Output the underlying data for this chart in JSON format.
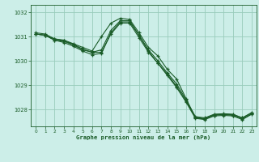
{
  "title": "Graphe pression niveau de la mer (hPa)",
  "bg_color": "#cceee8",
  "grid_color": "#99ccbb",
  "line_color": "#1a5c28",
  "xlim": [
    -0.5,
    23.5
  ],
  "ylim": [
    1027.3,
    1032.3
  ],
  "yticks": [
    1028,
    1029,
    1030,
    1031,
    1032
  ],
  "xticks": [
    0,
    1,
    2,
    3,
    4,
    5,
    6,
    7,
    8,
    9,
    10,
    11,
    12,
    13,
    14,
    15,
    16,
    17,
    18,
    19,
    20,
    21,
    22,
    23
  ],
  "series": [
    {
      "x": [
        0,
        1,
        2,
        3,
        4,
        5,
        6,
        7,
        8,
        9,
        10,
        11,
        12,
        13,
        14,
        15,
        16,
        17,
        18,
        19,
        20,
        21,
        22,
        23
      ],
      "y": [
        1031.1,
        1031.05,
        1030.9,
        1030.85,
        1030.7,
        1030.55,
        1030.4,
        1031.0,
        1031.55,
        1031.75,
        1031.7,
        1031.15,
        1030.55,
        1030.2,
        1029.65,
        1029.25,
        1028.45,
        1027.65,
        1027.6,
        1027.75,
        1027.8,
        1027.75,
        1027.6,
        1027.82
      ]
    },
    {
      "x": [
        0,
        1,
        2,
        3,
        4,
        5,
        6,
        7,
        8,
        9,
        10,
        11,
        12,
        13,
        14,
        15,
        16,
        17,
        18,
        19,
        20,
        21,
        22,
        23
      ],
      "y": [
        1031.1,
        1031.05,
        1030.85,
        1030.8,
        1030.65,
        1030.45,
        1030.35,
        1030.35,
        1031.1,
        1031.55,
        1031.55,
        1030.95,
        1030.35,
        1029.9,
        1029.45,
        1028.95,
        1028.35,
        1027.68,
        1027.62,
        1027.78,
        1027.8,
        1027.78,
        1027.65,
        1027.85
      ]
    },
    {
      "x": [
        0,
        1,
        2,
        3,
        4,
        5,
        6,
        7,
        8,
        9,
        10,
        11,
        12,
        13,
        14,
        15,
        16,
        17,
        18,
        19,
        20,
        21,
        22,
        23
      ],
      "y": [
        1031.1,
        1031.05,
        1030.85,
        1030.75,
        1030.6,
        1030.4,
        1030.25,
        1030.3,
        1031.15,
        1031.6,
        1031.6,
        1031.05,
        1030.4,
        1029.9,
        1029.4,
        1028.9,
        1028.3,
        1027.63,
        1027.58,
        1027.73,
        1027.75,
        1027.73,
        1027.58,
        1027.8
      ]
    },
    {
      "x": [
        0,
        1,
        2,
        3,
        4,
        5,
        6,
        7,
        8,
        9,
        10,
        11,
        12,
        13,
        14,
        15,
        16,
        17,
        18,
        19,
        20,
        21,
        22,
        23
      ],
      "y": [
        1031.15,
        1031.1,
        1030.9,
        1030.82,
        1030.68,
        1030.48,
        1030.35,
        1030.45,
        1031.25,
        1031.65,
        1031.65,
        1031.05,
        1030.45,
        1030.0,
        1029.5,
        1029.05,
        1028.4,
        1027.7,
        1027.65,
        1027.8,
        1027.82,
        1027.8,
        1027.65,
        1027.87
      ]
    }
  ]
}
